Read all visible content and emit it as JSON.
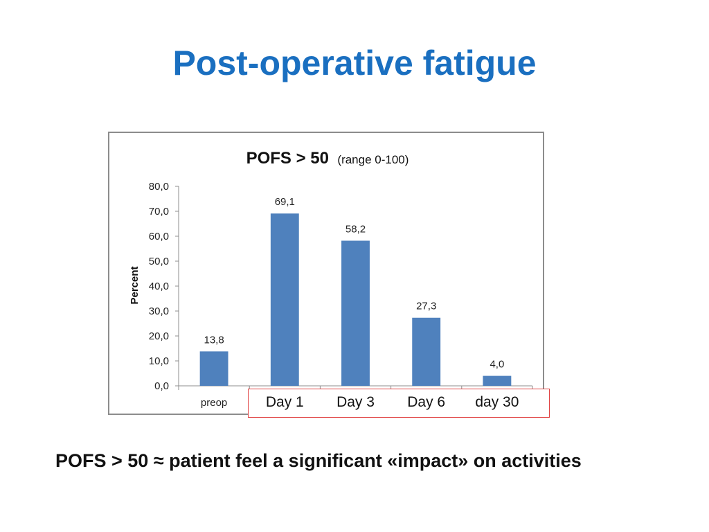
{
  "slide": {
    "title": "Post-operative fatigue",
    "footer": "POFS > 50  ≈  patient feel a significant «impact» on activities"
  },
  "chart_data": {
    "type": "bar",
    "title_main": "POFS > 50",
    "title_sub": "(range 0-100)",
    "ylabel": "Percent",
    "xlabel": "",
    "categories": [
      "preop",
      "Day 1",
      "Day 3",
      "Day 6",
      "day 30"
    ],
    "values": [
      13.8,
      69.1,
      58.2,
      27.3,
      4.0
    ],
    "value_labels": [
      "13,8",
      "69,1",
      "58,2",
      "27,3",
      "4,0"
    ],
    "y_ticks": [
      "0,0",
      "10,0",
      "20,0",
      "30,0",
      "40,0",
      "50,0",
      "60,0",
      "70,0",
      "80,0"
    ],
    "ylim": [
      0,
      80
    ],
    "bar_color": "#4f81bd",
    "grid": false,
    "legend": "none",
    "highlighted_categories": [
      "Day 1",
      "Day 3",
      "Day 6",
      "day 30"
    ],
    "highlight_color": "#e04040"
  }
}
